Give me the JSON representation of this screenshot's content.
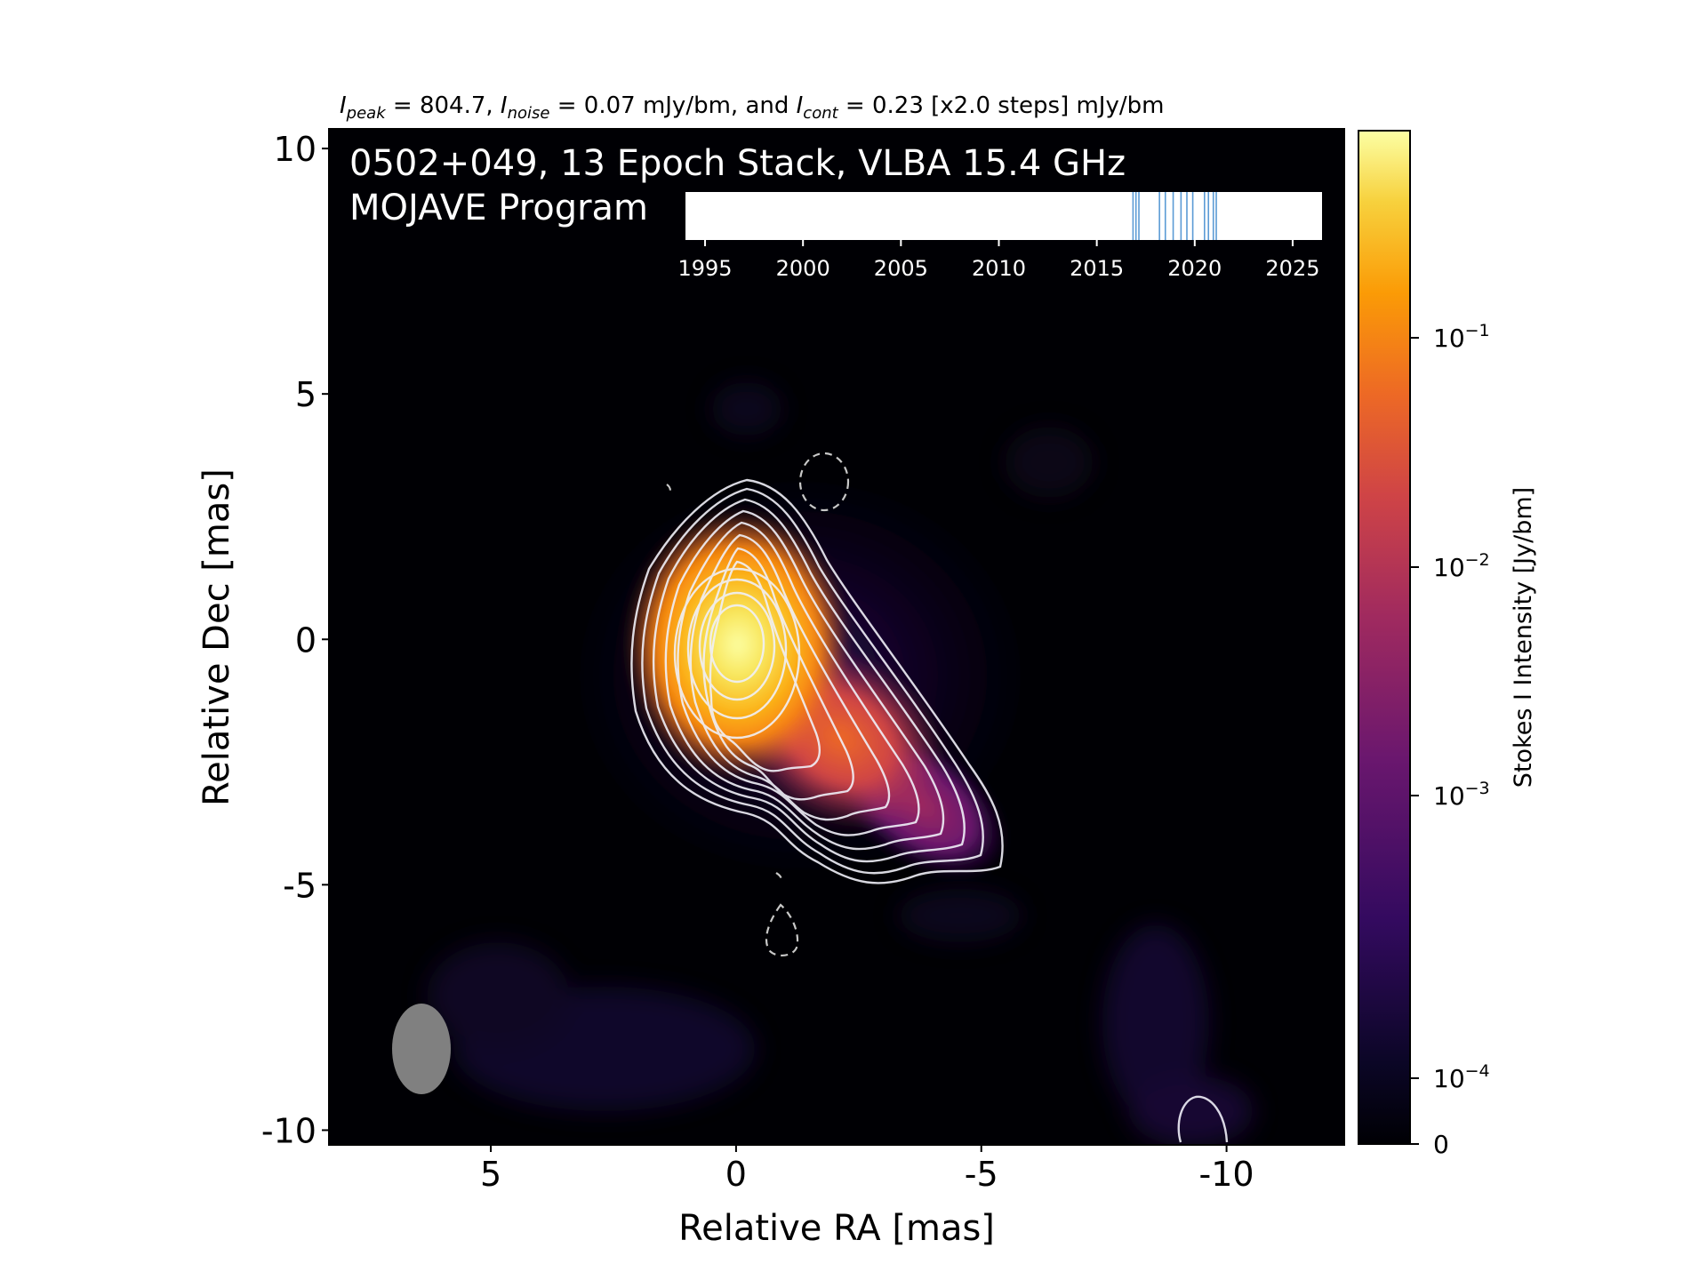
{
  "chart_data": {
    "type": "heatmap",
    "caption": {
      "peak_symbol": "I",
      "peak_sub": "peak",
      "peak_value": " = 804.7, ",
      "noise_symbol": "I",
      "noise_sub": "noise",
      "noise_value": " = 0.07 mJy/bm, and ",
      "cont_symbol": "I",
      "cont_sub": "cont",
      "cont_value": " = 0.23 [x2.0 steps] mJy/bm"
    },
    "title_line1": "0502+049, 13 Epoch Stack, VLBA 15.4 GHz",
    "title_line2": "MOJAVE Program",
    "xlabel": "Relative RA [mas]",
    "ylabel": "Relative Dec [mas]",
    "xlim": [
      8.3,
      -12.4
    ],
    "ylim": [
      -10.3,
      10.4
    ],
    "xticks": [
      5,
      0,
      -5,
      -10
    ],
    "xtick_labels": [
      "5",
      "0",
      "-5",
      "-10"
    ],
    "yticks": [
      10,
      5,
      0,
      -5,
      -10
    ],
    "ytick_labels": [
      "10",
      "5",
      "0",
      "-5",
      "-10"
    ],
    "colorbar": {
      "label": "Stokes I Intensity [Jy/bm]",
      "scale": "log",
      "ticks": [
        {
          "base": "10",
          "exp": "−1"
        },
        {
          "base": "10",
          "exp": "−2"
        },
        {
          "base": "10",
          "exp": "−3"
        },
        {
          "base": "10",
          "exp": "−4"
        },
        {
          "base": "0",
          "exp": ""
        }
      ],
      "colormap": "inferno"
    },
    "timeline": {
      "xlim": [
        1994,
        2026.5
      ],
      "ticks": [
        1995,
        2000,
        2005,
        2010,
        2015,
        2020,
        2025
      ],
      "tick_labels": [
        "1995",
        "2000",
        "2005",
        "2010",
        "2015",
        "2020",
        "2025"
      ],
      "epochs": [
        2016.85,
        2017.0,
        2017.15,
        2018.2,
        2018.5,
        2018.9,
        2019.3,
        2019.6,
        2019.9,
        2020.5,
        2020.7,
        2020.95,
        2021.1
      ]
    },
    "peak_position": {
      "ra": 0.0,
      "dec": 0.0
    },
    "beam": {
      "ra": 6.4,
      "dec": -8.3,
      "major": 1.85,
      "minor": 1.2
    },
    "contour_color": "#f0f0f8",
    "negative_contour_color": "#c8c8c8",
    "accent_colors": [
      "#000004",
      "#420a68",
      "#932667",
      "#dd513a",
      "#fca50a",
      "#fcffa4"
    ],
    "epoch_line_color": "#5b9bd5"
  }
}
